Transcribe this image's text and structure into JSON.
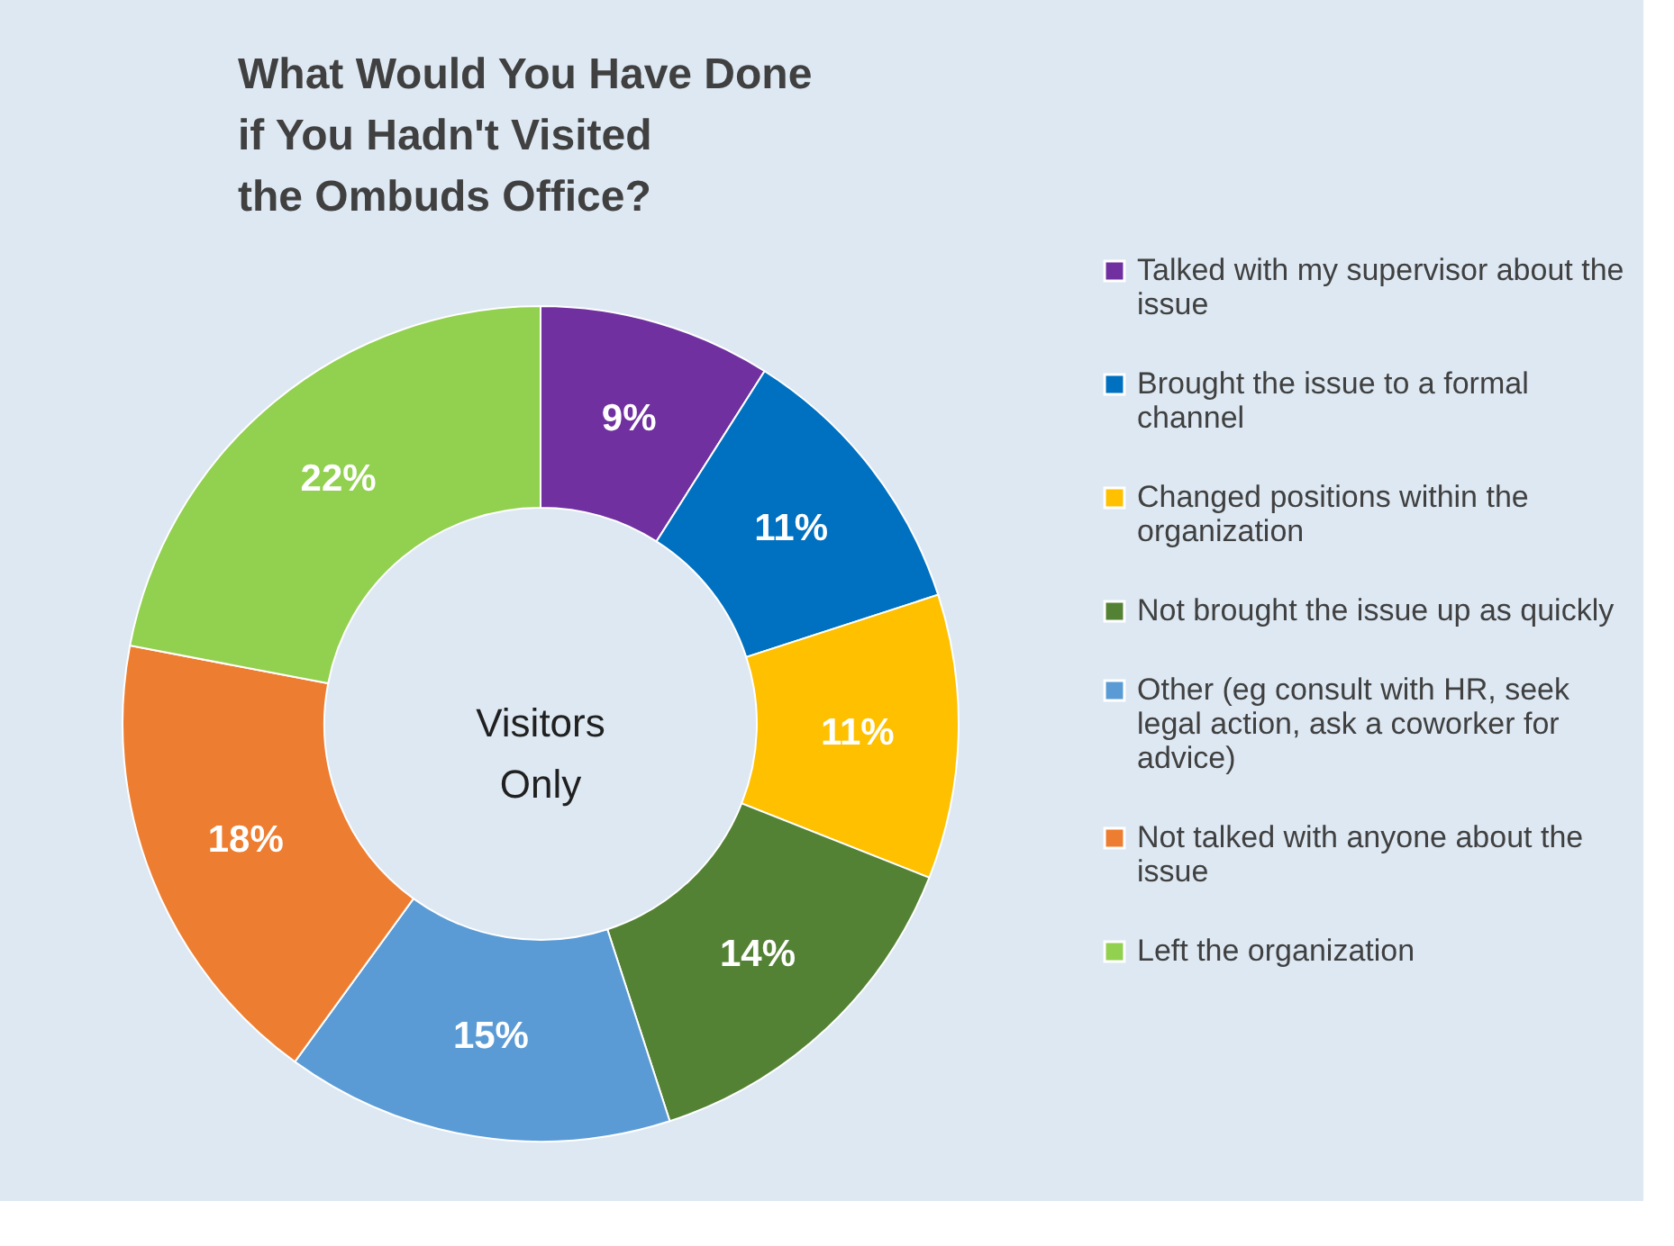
{
  "chart_data": {
    "type": "donut",
    "title": "What Would You Have Done if You Hadn't Visited the Ombuds Office?",
    "categories": [
      "Talked with my supervisor about the issue",
      "Brought the issue to a formal channel",
      "Changed positions within the organization",
      "Not brought the issue up as quickly",
      "Other (eg consult with HR, seek legal action, ask a coworker for advice)",
      "Not talked with anyone about the issue",
      "Left the organization"
    ],
    "values": [
      9,
      11,
      11,
      14,
      15,
      18,
      22
    ],
    "value_labels": [
      "9%",
      "11%",
      "11%",
      "14%",
      "15%",
      "18%",
      "22%"
    ],
    "colors": [
      "#7030a0",
      "#0070c0",
      "#ffc000",
      "#548235",
      "#5b9bd5",
      "#ed7d31",
      "#92d050"
    ],
    "annotations": [
      "Visitors Only"
    ],
    "legend": "right"
  }
}
